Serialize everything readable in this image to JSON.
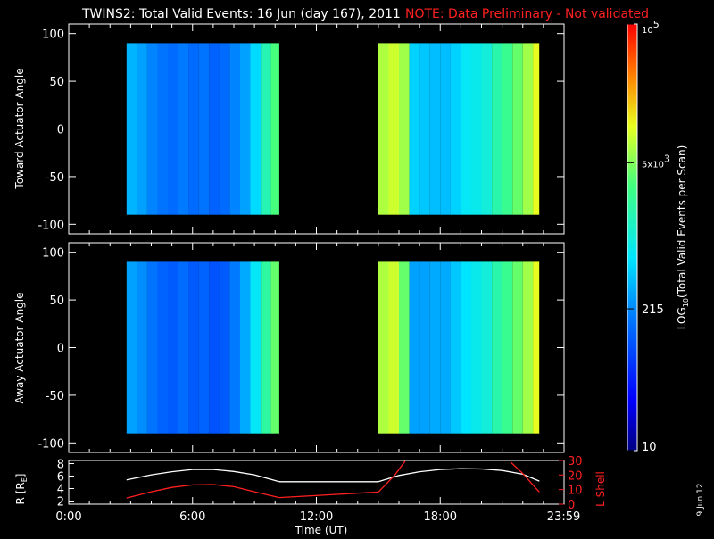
{
  "title": {
    "main": "TWINS2: Total Valid Events: 16 Jun (day 167), 2011",
    "note": "NOTE: Data Preliminary - Not validated"
  },
  "date_stamp": "9 Jun 12",
  "colors": {
    "background": "#000000",
    "axes": "#ffffff",
    "note": "#ff2020",
    "r_line": "#ffffff",
    "l_shell_line": "#ff2020"
  },
  "chart_data": [
    {
      "type": "heatmap",
      "panel": "top",
      "ylabel": "Toward Actuator Angle",
      "ylim": [
        -110,
        110
      ],
      "yticks": [
        "100",
        "50",
        "0",
        "-50",
        "-100"
      ],
      "ytick_values": [
        100,
        50,
        0,
        -50,
        -100
      ],
      "angle_range": [
        -90,
        90
      ],
      "xlim_hours": [
        0,
        24
      ],
      "data_blocks_hours": [
        [
          2.8,
          10.2
        ],
        [
          15.0,
          22.8
        ]
      ],
      "time_bins_hours": [
        2.8,
        3.3,
        3.8,
        4.3,
        4.8,
        5.3,
        5.8,
        6.3,
        6.8,
        7.3,
        7.8,
        8.3,
        8.8,
        9.3,
        9.8,
        15.0,
        15.5,
        16.0,
        16.5,
        17.0,
        17.5,
        18.0,
        18.5,
        19.0,
        19.5,
        20.0,
        20.5,
        21.0,
        21.5,
        22.0,
        22.5
      ],
      "log10_counts": [
        2.55,
        2.45,
        2.3,
        2.2,
        2.15,
        2.25,
        2.15,
        2.2,
        2.1,
        2.15,
        2.3,
        2.45,
        2.75,
        3.2,
        3.5,
        3.85,
        3.95,
        3.8,
        2.7,
        2.65,
        2.6,
        2.6,
        2.7,
        2.85,
        2.9,
        3.0,
        3.25,
        3.4,
        3.6,
        3.8,
        4.05
      ]
    },
    {
      "type": "heatmap",
      "panel": "middle",
      "ylabel": "Away Actuator Angle",
      "ylim": [
        -110,
        110
      ],
      "yticks": [
        "100",
        "50",
        "0",
        "-50",
        "-100"
      ],
      "ytick_values": [
        100,
        50,
        0,
        -50,
        -100
      ],
      "angle_range": [
        -90,
        90
      ],
      "xlim_hours": [
        0,
        24
      ],
      "data_blocks_hours": [
        [
          2.8,
          10.2
        ],
        [
          15.0,
          22.8
        ]
      ],
      "time_bins_hours": [
        2.8,
        3.3,
        3.8,
        4.3,
        4.8,
        5.3,
        5.8,
        6.3,
        6.8,
        7.3,
        7.8,
        8.3,
        8.8,
        9.3,
        9.8,
        15.0,
        15.5,
        16.0,
        16.5,
        17.0,
        17.5,
        18.0,
        18.5,
        19.0,
        19.5,
        20.0,
        20.5,
        21.0,
        21.5,
        22.0,
        22.5
      ],
      "log10_counts": [
        2.45,
        2.35,
        2.2,
        2.1,
        2.05,
        2.15,
        2.05,
        2.1,
        2.0,
        2.05,
        2.25,
        2.5,
        2.85,
        3.3,
        3.6,
        3.85,
        3.95,
        3.6,
        2.45,
        2.45,
        2.5,
        2.5,
        2.65,
        2.8,
        2.9,
        3.0,
        3.25,
        3.4,
        3.6,
        3.8,
        4.05
      ]
    },
    {
      "type": "line",
      "panel": "bottom",
      "xlabel": "Time (UT)",
      "xticks": [
        "0:00",
        "6:00",
        "12:00",
        "18:00",
        "23:59"
      ],
      "xtick_values_hours": [
        0,
        6,
        12,
        18,
        23.98
      ],
      "left_axis": {
        "label": "R [R",
        "label_sub": "E",
        "label_end": "]",
        "ylim": [
          1.5,
          8.5
        ],
        "yticks": [
          "8",
          "6",
          "4",
          "2"
        ],
        "ytick_values": [
          8,
          6,
          4,
          2
        ]
      },
      "right_axis": {
        "label": "L Shell",
        "ylim": [
          0,
          30
        ],
        "yticks": [
          "30",
          "20",
          "10",
          "0"
        ],
        "ytick_values": [
          30,
          20,
          10,
          0
        ]
      },
      "series": [
        {
          "name": "R [RE]",
          "axis": "left",
          "segments": [
            [
              [
                2.8,
                5.4
              ],
              [
                4.0,
                6.2
              ],
              [
                5.0,
                6.7
              ],
              [
                6.0,
                7.05
              ],
              [
                7.0,
                7.05
              ],
              [
                8.0,
                6.75
              ],
              [
                9.0,
                6.2
              ],
              [
                10.2,
                5.1
              ]
            ],
            [
              [
                10.2,
                5.1
              ],
              [
                15.0,
                5.1
              ]
            ],
            [
              [
                15.0,
                5.1
              ],
              [
                16.0,
                6.1
              ],
              [
                17.0,
                6.7
              ],
              [
                18.0,
                7.05
              ],
              [
                19.0,
                7.2
              ],
              [
                20.0,
                7.15
              ],
              [
                21.0,
                6.9
              ],
              [
                22.0,
                6.3
              ],
              [
                22.8,
                5.2
              ]
            ]
          ]
        },
        {
          "name": "L Shell",
          "axis": "right",
          "segments": [
            [
              [
                2.8,
                4.2
              ],
              [
                4.0,
                8.5
              ],
              [
                5.0,
                11.5
              ],
              [
                6.0,
                13.2
              ],
              [
                7.0,
                13.5
              ],
              [
                8.0,
                12.0
              ],
              [
                9.0,
                8.5
              ],
              [
                10.2,
                4.5
              ]
            ],
            [
              [
                10.2,
                4.5
              ],
              [
                15.0,
                8.3
              ]
            ],
            [
              [
                15.0,
                8.3
              ],
              [
                15.8,
                20.0
              ],
              [
                16.3,
                29.5
              ]
            ],
            [
              [
                21.4,
                29.0
              ],
              [
                22.0,
                21.0
              ],
              [
                22.8,
                8.3
              ]
            ]
          ]
        }
      ]
    }
  ],
  "colorbar": {
    "label": "LOG",
    "label_sub": "10",
    "label_end": "(Total Valid Events per Scan)",
    "log_range": [
      1,
      5
    ],
    "ticks": [
      {
        "text": "10",
        "log": 1.0
      },
      {
        "text": "215",
        "log": 2.33
      },
      {
        "text": "5x10",
        "sup": "3",
        "log": 3.7
      },
      {
        "text": "10",
        "sup": "5",
        "log": 5.0
      }
    ]
  }
}
